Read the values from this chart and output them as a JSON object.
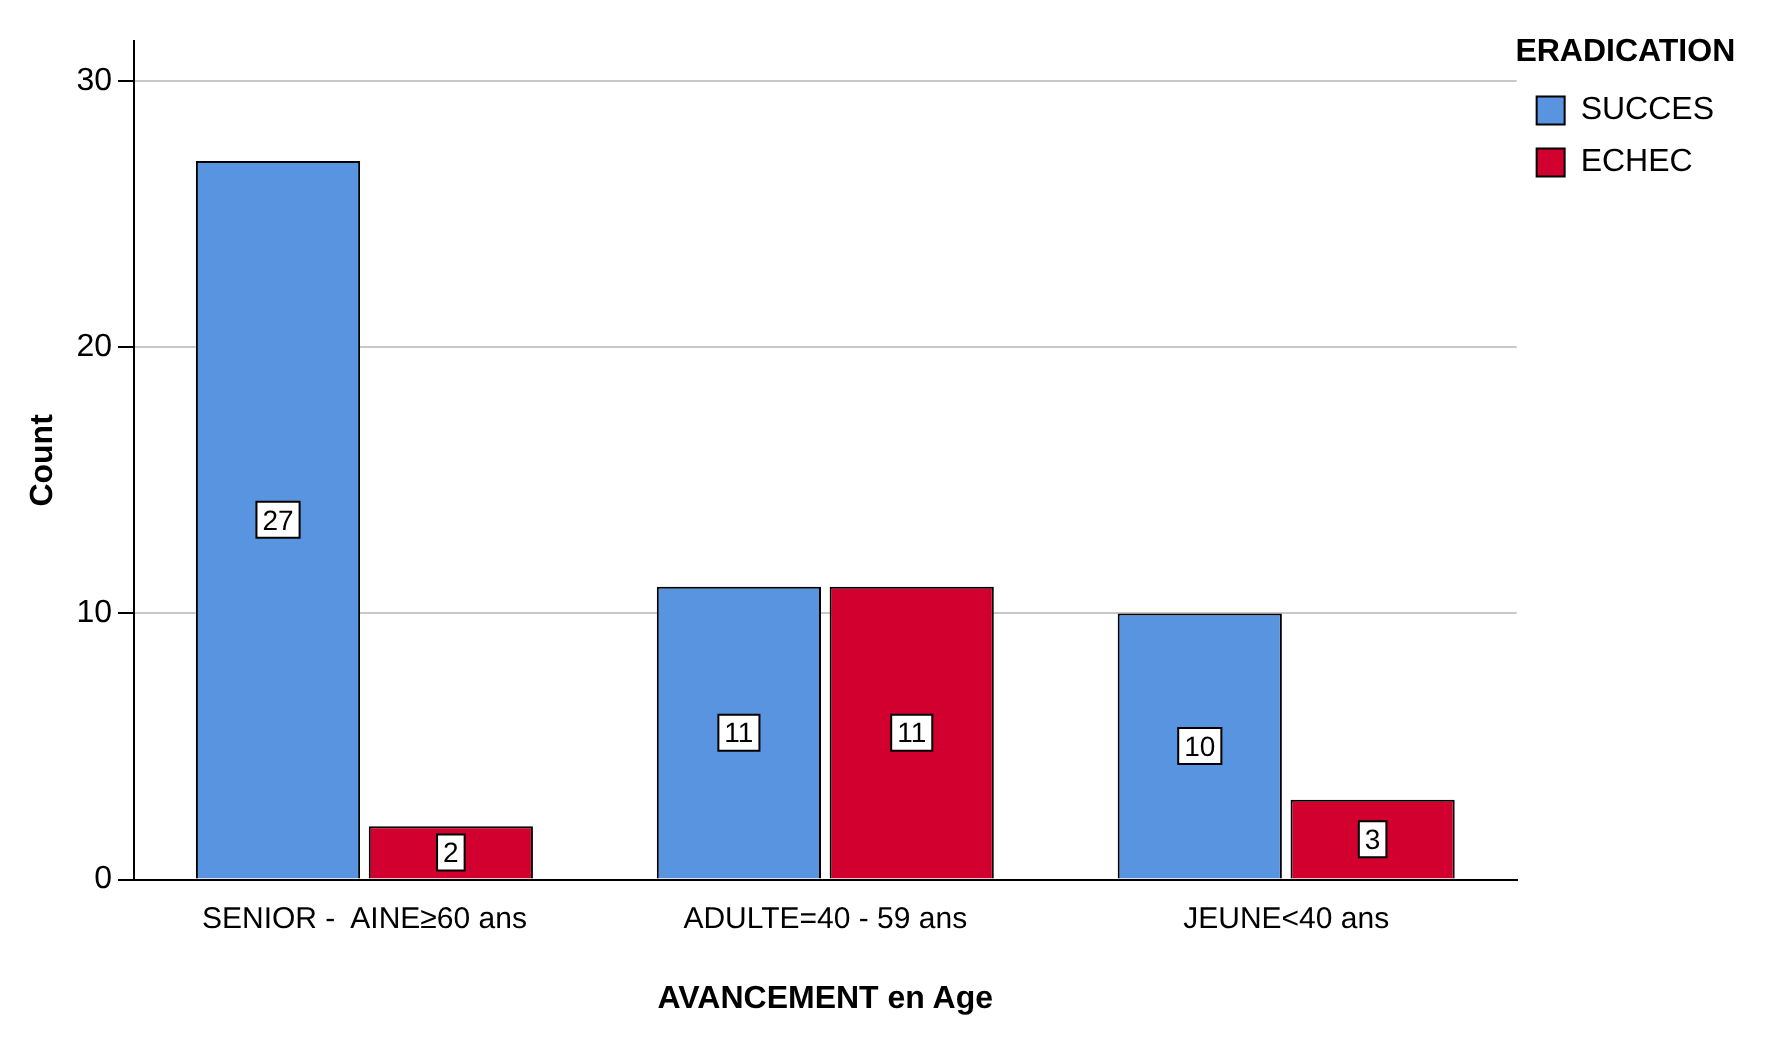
{
  "chart_data": {
    "type": "bar",
    "xlabel": "AVANCEMENT en Age",
    "ylabel": "Count",
    "legend_title": "ERADICATION",
    "categories": [
      "SENIOR -  AINE≥60 ans",
      "ADULTE=40 - 59 ans",
      "JEUNE<40 ans"
    ],
    "series": [
      {
        "name": "SUCCES",
        "color": "#5894e0",
        "values": [
          27,
          11,
          10
        ]
      },
      {
        "name": "ECHEC",
        "color": "#d2002e",
        "values": [
          2,
          11,
          3
        ]
      }
    ],
    "ylim": [
      0,
      31.5
    ],
    "yticks": [
      0,
      10,
      20,
      30
    ],
    "grid": "y",
    "legend": "top right",
    "data_labels": true
  }
}
